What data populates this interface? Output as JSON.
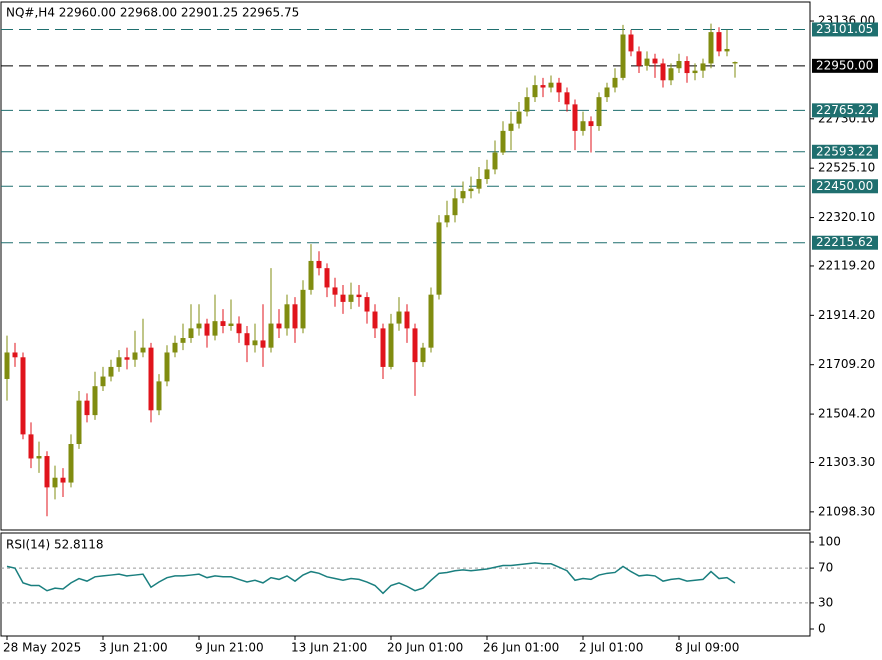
{
  "chart_data": {
    "type": "candlestick",
    "title": "NQ#,H4  22960.00 22968.00 22901.25 22965.75",
    "up_color": "#808c10",
    "down_color": "#e0141c",
    "ylim": [
      21023,
      23215
    ],
    "yticks": [
      {
        "value": 23136,
        "label": "23136.00"
      },
      {
        "value": 22730.1,
        "label": "22730.10"
      },
      {
        "value": 22525.1,
        "label": "22525.10"
      },
      {
        "value": 22320.1,
        "label": "22320.10"
      },
      {
        "value": 22119.2,
        "label": "22119.20"
      },
      {
        "value": 21914.2,
        "label": "21914.20"
      },
      {
        "value": 21709.2,
        "label": "21709.20"
      },
      {
        "value": 21504.2,
        "label": "21504.20"
      },
      {
        "value": 21303.3,
        "label": "21303.30"
      },
      {
        "value": 21098.3,
        "label": "21098.30"
      }
    ],
    "xticks": [
      {
        "value": 0,
        "label": "28 May 2025"
      },
      {
        "value": 12,
        "label": "3 Jun 21:00"
      },
      {
        "value": 24,
        "label": "9 Jun 21:00"
      },
      {
        "value": 36,
        "label": "13 Jun 21:00"
      },
      {
        "value": 48,
        "label": "20 Jun 01:00"
      },
      {
        "value": 60,
        "label": "26 Jun 01:00"
      },
      {
        "value": 72,
        "label": "2 Jul 01:00"
      },
      {
        "value": 84,
        "label": "8 Jul 09:00"
      }
    ],
    "levels": [
      {
        "value": 23101.05,
        "label": "23101.05",
        "color": "#1f6f6f"
      },
      {
        "value": 22950,
        "label": "22950.00",
        "color": "#000000"
      },
      {
        "value": 22765.22,
        "label": "22765.22",
        "color": "#1f6f6f"
      },
      {
        "value": 22593.22,
        "label": "22593.22",
        "color": "#1f6f6f"
      },
      {
        "value": 22450,
        "label": "22450.00",
        "color": "#1f6f6f"
      },
      {
        "value": 22215.62,
        "label": "22215.62",
        "color": "#1f6f6f"
      }
    ],
    "candles": [
      [
        21650,
        21830,
        21560,
        21760
      ],
      [
        21760,
        21800,
        21700,
        21740
      ],
      [
        21740,
        21760,
        21400,
        21420
      ],
      [
        21420,
        21470,
        21280,
        21320
      ],
      [
        21320,
        21390,
        21260,
        21330
      ],
      [
        21330,
        21350,
        21080,
        21200
      ],
      [
        21200,
        21290,
        21150,
        21240
      ],
      [
        21240,
        21280,
        21160,
        21220
      ],
      [
        21220,
        21420,
        21200,
        21380
      ],
      [
        21380,
        21600,
        21360,
        21560
      ],
      [
        21560,
        21590,
        21470,
        21500
      ],
      [
        21500,
        21680,
        21480,
        21620
      ],
      [
        21620,
        21700,
        21600,
        21660
      ],
      [
        21660,
        21730,
        21640,
        21700
      ],
      [
        21700,
        21770,
        21680,
        21740
      ],
      [
        21740,
        21780,
        21690,
        21730
      ],
      [
        21730,
        21850,
        21700,
        21760
      ],
      [
        21760,
        21900,
        21740,
        21780
      ],
      [
        21780,
        21800,
        21470,
        21520
      ],
      [
        21520,
        21670,
        21500,
        21640
      ],
      [
        21640,
        21790,
        21620,
        21760
      ],
      [
        21760,
        21830,
        21740,
        21800
      ],
      [
        21800,
        21880,
        21770,
        21820
      ],
      [
        21820,
        21960,
        21800,
        21860
      ],
      [
        21860,
        21960,
        21830,
        21880
      ],
      [
        21880,
        21900,
        21780,
        21830
      ],
      [
        21830,
        22000,
        21810,
        21890
      ],
      [
        21890,
        21940,
        21840,
        21870
      ],
      [
        21870,
        21980,
        21850,
        21880
      ],
      [
        21880,
        21910,
        21800,
        21840
      ],
      [
        21840,
        21870,
        21720,
        21790
      ],
      [
        21790,
        21880,
        21760,
        21810
      ],
      [
        21810,
        21960,
        21700,
        21780
      ],
      [
        21780,
        22110,
        21760,
        21880
      ],
      [
        21880,
        21940,
        21820,
        21860
      ],
      [
        21860,
        22000,
        21830,
        21960
      ],
      [
        21960,
        21990,
        21800,
        21860
      ],
      [
        21860,
        22060,
        21840,
        22020
      ],
      [
        22020,
        22210,
        22000,
        22140
      ],
      [
        22140,
        22180,
        22080,
        22110
      ],
      [
        22110,
        22130,
        21990,
        22030
      ],
      [
        22030,
        22070,
        21950,
        22000
      ],
      [
        22000,
        22040,
        21920,
        21970
      ],
      [
        21970,
        22050,
        21940,
        22000
      ],
      [
        22000,
        22040,
        21950,
        21990
      ],
      [
        21990,
        22010,
        21880,
        21930
      ],
      [
        21930,
        21960,
        21820,
        21860
      ],
      [
        21860,
        21880,
        21650,
        21700
      ],
      [
        21700,
        21920,
        21690,
        21880
      ],
      [
        21880,
        21990,
        21850,
        21930
      ],
      [
        21930,
        21960,
        21800,
        21860
      ],
      [
        21860,
        21880,
        21580,
        21720
      ],
      [
        21720,
        21800,
        21700,
        21780
      ],
      [
        21780,
        22030,
        21760,
        22000
      ],
      [
        22000,
        22330,
        21980,
        22300
      ],
      [
        22300,
        22390,
        22280,
        22330
      ],
      [
        22330,
        22440,
        22300,
        22400
      ],
      [
        22400,
        22470,
        22380,
        22430
      ],
      [
        22430,
        22490,
        22400,
        22440
      ],
      [
        22440,
        22530,
        22420,
        22480
      ],
      [
        22480,
        22560,
        22460,
        22520
      ],
      [
        22520,
        22640,
        22500,
        22590
      ],
      [
        22590,
        22720,
        22580,
        22680
      ],
      [
        22680,
        22760,
        22600,
        22710
      ],
      [
        22710,
        22800,
        22690,
        22760
      ],
      [
        22760,
        22860,
        22740,
        22820
      ],
      [
        22820,
        22910,
        22800,
        22870
      ],
      [
        22870,
        22900,
        22820,
        22860
      ],
      [
        22860,
        22910,
        22840,
        22880
      ],
      [
        22880,
        22900,
        22800,
        22840
      ],
      [
        22840,
        22860,
        22760,
        22790
      ],
      [
        22790,
        22810,
        22600,
        22680
      ],
      [
        22680,
        22760,
        22660,
        22720
      ],
      [
        22720,
        22740,
        22590,
        22700
      ],
      [
        22700,
        22840,
        22680,
        22820
      ],
      [
        22820,
        22880,
        22800,
        22860
      ],
      [
        22860,
        22940,
        22840,
        22900
      ],
      [
        22900,
        23120,
        22890,
        23080
      ],
      [
        23080,
        23100,
        22990,
        23010
      ],
      [
        23010,
        23030,
        22920,
        22950
      ],
      [
        22950,
        23010,
        22930,
        22980
      ],
      [
        22980,
        23000,
        22900,
        22960
      ],
      [
        22960,
        22980,
        22860,
        22890
      ],
      [
        22890,
        22960,
        22870,
        22940
      ],
      [
        22940,
        23000,
        22920,
        22970
      ],
      [
        22970,
        22990,
        22880,
        22920
      ],
      [
        22920,
        22960,
        22890,
        22930
      ],
      [
        22930,
        22980,
        22900,
        22960
      ],
      [
        22960,
        23125,
        22940,
        23090
      ],
      [
        23090,
        23110,
        22990,
        23010
      ],
      [
        23010,
        23100,
        22990,
        23020
      ],
      [
        22960,
        22968,
        22901.25,
        22965.75
      ]
    ],
    "rsi": {
      "title": "RSI(14) 52.8118",
      "color": "#1a7f7f",
      "ylim": [
        0,
        100
      ],
      "yticks": [
        100,
        70,
        30,
        0
      ],
      "levels": [
        70,
        30
      ],
      "values": [
        72,
        70,
        53,
        50,
        50,
        44,
        47,
        46,
        53,
        58,
        55,
        60,
        61,
        62,
        63,
        61,
        62,
        63,
        48,
        54,
        59,
        61,
        61,
        62,
        63,
        59,
        61,
        60,
        60,
        57,
        54,
        56,
        53,
        59,
        57,
        61,
        55,
        62,
        66,
        64,
        60,
        58,
        56,
        58,
        57,
        54,
        50,
        41,
        50,
        53,
        49,
        44,
        47,
        56,
        64,
        65,
        67,
        68,
        67,
        68,
        69,
        71,
        73,
        73,
        74,
        75,
        76,
        75,
        75,
        71,
        67,
        56,
        58,
        57,
        62,
        64,
        65,
        72,
        66,
        61,
        62,
        61,
        55,
        57,
        58,
        55,
        56,
        57,
        66,
        58,
        59,
        52.8118
      ]
    }
  }
}
